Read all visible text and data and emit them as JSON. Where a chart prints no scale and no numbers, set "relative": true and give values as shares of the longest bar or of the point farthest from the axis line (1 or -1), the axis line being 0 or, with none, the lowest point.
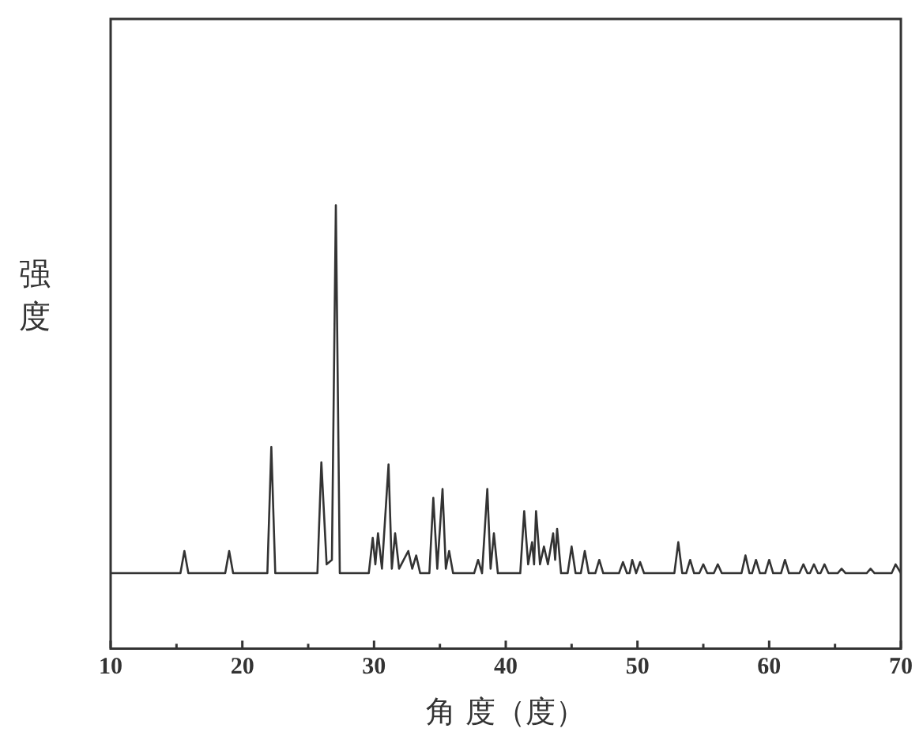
{
  "chart_data": {
    "type": "line",
    "relative": true,
    "marker": "none",
    "xlabel": "角 度（度）",
    "ylabel": "强度",
    "xlim": [
      10,
      70
    ],
    "xticks": [
      10,
      {
        "value": 15,
        "label": null
      },
      20,
      {
        "value": 25,
        "label": null
      },
      30,
      {
        "value": 35,
        "label": null
      },
      40,
      {
        "value": 45,
        "label": null
      },
      50,
      {
        "value": 55,
        "label": null
      },
      60,
      {
        "value": 65,
        "label": null
      },
      70
    ],
    "series": [
      {
        "color": "#333333",
        "x": [
          10,
          15.3,
          15.6,
          15.9,
          18.7,
          19.0,
          19.3,
          21.9,
          22.2,
          22.5,
          25.7,
          26.0,
          26.4,
          26.8,
          27.1,
          27.4,
          29.6,
          29.9,
          30.1,
          30.3,
          30.6,
          31.1,
          31.35,
          31.6,
          31.9,
          32.6,
          32.9,
          33.2,
          33.5,
          34.2,
          34.5,
          34.8,
          35.2,
          35.45,
          35.7,
          36.0,
          37.6,
          37.9,
          38.2,
          38.6,
          38.85,
          39.1,
          39.4,
          41.1,
          41.4,
          41.7,
          42.0,
          42.15,
          42.3,
          42.6,
          42.9,
          43.2,
          43.6,
          43.75,
          43.9,
          44.2,
          44.7,
          45.0,
          45.3,
          45.7,
          46.0,
          46.3,
          46.8,
          47.1,
          47.4,
          48.6,
          48.9,
          49.2,
          49.4,
          49.6,
          49.9,
          50.2,
          50.5,
          52.8,
          53.1,
          53.4,
          53.7,
          54.0,
          54.3,
          54.7,
          55.0,
          55.3,
          55.8,
          56.1,
          56.4,
          57.9,
          58.2,
          58.5,
          58.7,
          59.0,
          59.3,
          59.7,
          60.0,
          60.3,
          60.9,
          61.2,
          61.5,
          62.3,
          62.6,
          62.9,
          63.1,
          63.4,
          63.7,
          63.9,
          64.2,
          64.5,
          65.2,
          65.5,
          65.8,
          67.4,
          67.7,
          68.0,
          69.3,
          69.6,
          70
        ],
        "values": [
          0.17,
          0.17,
          0.22,
          0.17,
          0.17,
          0.22,
          0.17,
          0.17,
          0.455,
          0.17,
          0.17,
          0.42,
          0.19,
          0.2,
          1.0,
          0.17,
          0.17,
          0.25,
          0.19,
          0.26,
          0.18,
          0.415,
          0.18,
          0.26,
          0.18,
          0.22,
          0.18,
          0.21,
          0.17,
          0.17,
          0.34,
          0.18,
          0.36,
          0.18,
          0.22,
          0.17,
          0.17,
          0.2,
          0.17,
          0.36,
          0.18,
          0.26,
          0.17,
          0.17,
          0.31,
          0.19,
          0.24,
          0.19,
          0.31,
          0.19,
          0.23,
          0.19,
          0.26,
          0.2,
          0.27,
          0.17,
          0.17,
          0.23,
          0.17,
          0.17,
          0.22,
          0.17,
          0.17,
          0.2,
          0.17,
          0.17,
          0.195,
          0.17,
          0.17,
          0.2,
          0.17,
          0.195,
          0.17,
          0.17,
          0.24,
          0.17,
          0.17,
          0.2,
          0.17,
          0.17,
          0.19,
          0.17,
          0.17,
          0.19,
          0.17,
          0.17,
          0.21,
          0.17,
          0.17,
          0.2,
          0.17,
          0.17,
          0.2,
          0.17,
          0.17,
          0.2,
          0.17,
          0.17,
          0.19,
          0.17,
          0.17,
          0.19,
          0.17,
          0.17,
          0.19,
          0.17,
          0.17,
          0.18,
          0.17,
          0.17,
          0.18,
          0.17,
          0.17,
          0.19,
          0.17
        ]
      }
    ]
  }
}
